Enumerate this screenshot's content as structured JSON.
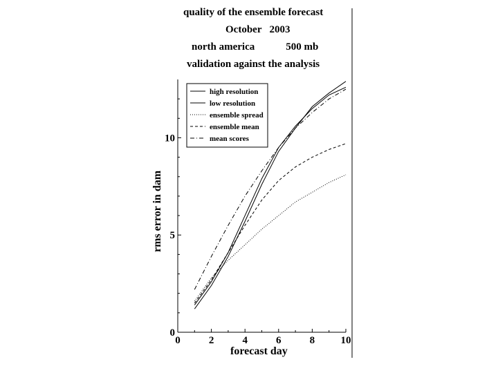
{
  "chart_data": {
    "type": "line",
    "title_lines": [
      "quality of the ensemble forecast",
      "October   2003",
      "north america            500 mb",
      "validation against the analysis"
    ],
    "xlabel": "forecast day",
    "ylabel": "rms error in dam",
    "xlim": [
      0,
      10
    ],
    "ylim": [
      0,
      13
    ],
    "x_ticks": [
      "0",
      "2",
      "4",
      "6",
      "8",
      "10"
    ],
    "y_ticks": [
      "0",
      "5",
      "10"
    ],
    "grid": false,
    "legend_position": "top-left",
    "x": [
      1,
      2,
      3,
      4,
      5,
      6,
      7,
      8,
      9,
      10
    ],
    "series": [
      {
        "name": "high resolution",
        "dash": "solid",
        "values": [
          1.2,
          2.4,
          3.9,
          5.7,
          7.6,
          9.3,
          10.5,
          11.6,
          12.3,
          12.9
        ]
      },
      {
        "name": "low resolution",
        "dash": "solid",
        "values": [
          1.4,
          2.6,
          4.1,
          6.0,
          7.9,
          9.5,
          10.6,
          11.5,
          12.2,
          12.6
        ]
      },
      {
        "name": "ensemble spread",
        "dash": "dotted",
        "values": [
          1.6,
          2.8,
          3.7,
          4.5,
          5.3,
          6.0,
          6.7,
          7.2,
          7.7,
          8.1
        ]
      },
      {
        "name": "ensemble mean",
        "dash": "dashed",
        "values": [
          1.5,
          2.7,
          4.1,
          5.5,
          6.8,
          7.8,
          8.5,
          9.0,
          9.4,
          9.7
        ]
      },
      {
        "name": "mean scores",
        "dash": "dashdot",
        "values": [
          2.2,
          3.9,
          5.5,
          7.0,
          8.3,
          9.5,
          10.5,
          11.3,
          12.0,
          12.5
        ]
      }
    ]
  }
}
